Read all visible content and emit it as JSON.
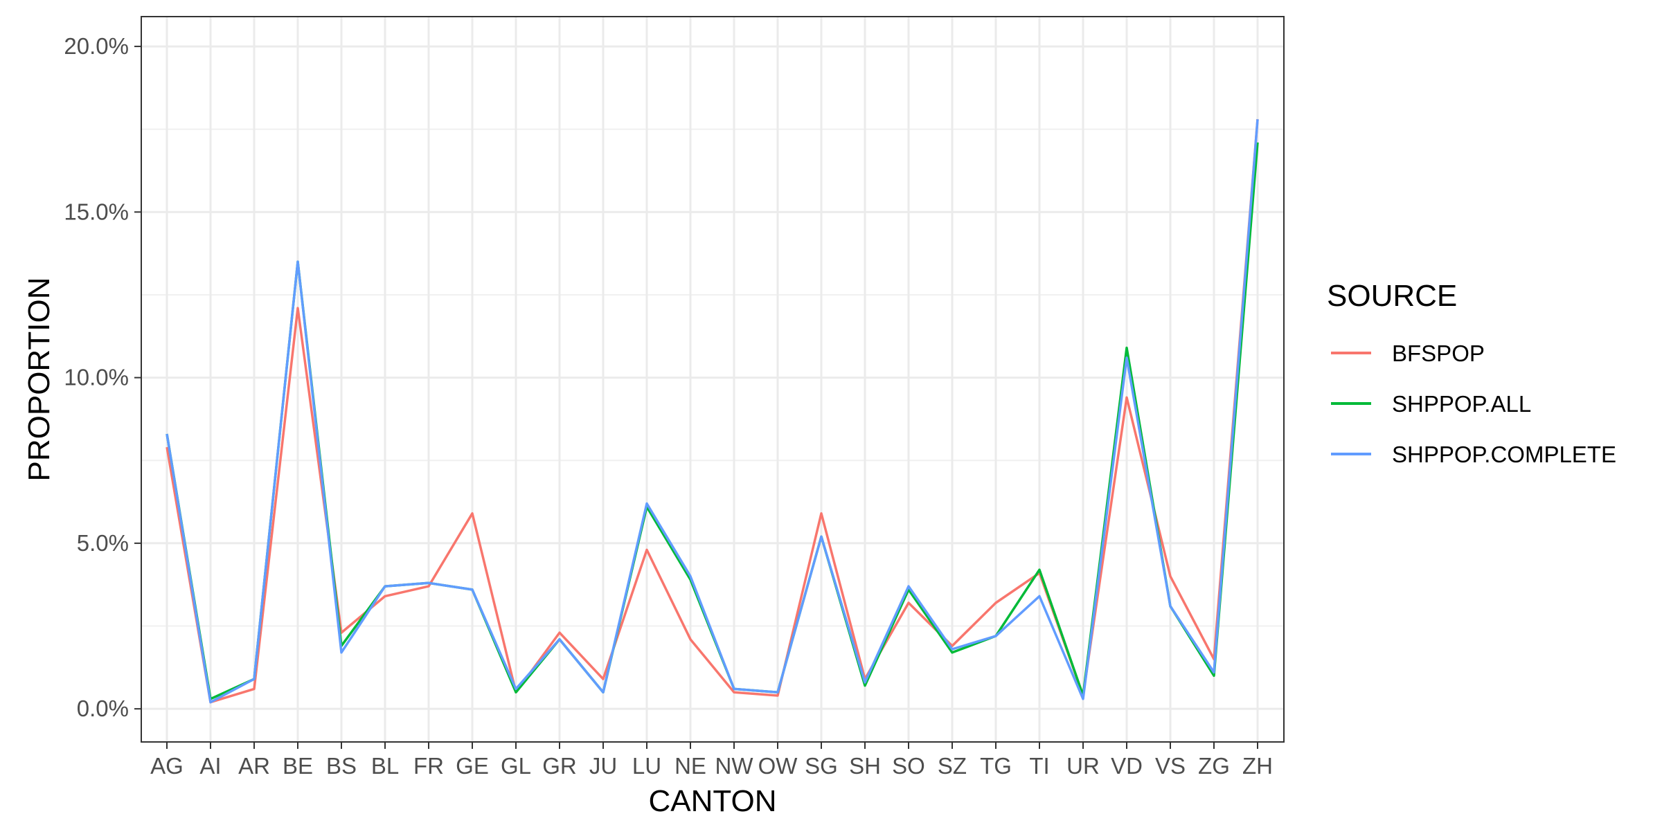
{
  "chart_data": {
    "type": "line",
    "title": "",
    "xlabel": "CANTON",
    "ylabel": "PROPORTION",
    "ylim": [
      -0.01,
      0.209
    ],
    "y_ticks": [
      0.0,
      0.05,
      0.1,
      0.15,
      0.2
    ],
    "y_tick_labels": [
      "0.0%",
      "5.0%",
      "10.0%",
      "15.0%",
      "20.0%"
    ],
    "grid": true,
    "legend": {
      "title": "SOURCE",
      "position": "right"
    },
    "categories": [
      "AG",
      "AI",
      "AR",
      "BE",
      "BS",
      "BL",
      "FR",
      "GE",
      "GL",
      "GR",
      "JU",
      "LU",
      "NE",
      "NW",
      "OW",
      "SG",
      "SH",
      "SO",
      "SZ",
      "TG",
      "TI",
      "UR",
      "VD",
      "VS",
      "ZG",
      "ZH"
    ],
    "series": [
      {
        "name": "BFSPOP",
        "color": "#F8766D",
        "values": [
          0.079,
          0.002,
          0.006,
          0.121,
          0.023,
          0.034,
          0.037,
          0.059,
          0.005,
          0.023,
          0.009,
          0.048,
          0.021,
          0.005,
          0.004,
          0.059,
          0.009,
          0.032,
          0.019,
          0.032,
          0.041,
          0.004,
          0.094,
          0.04,
          0.015,
          0.178
        ]
      },
      {
        "name": "SHPPOP.ALL",
        "color": "#00BA38",
        "values": [
          0.083,
          0.003,
          0.009,
          0.135,
          0.019,
          0.037,
          0.038,
          0.036,
          0.005,
          0.021,
          0.005,
          0.061,
          0.039,
          0.006,
          0.005,
          0.052,
          0.007,
          0.036,
          0.017,
          0.022,
          0.042,
          0.004,
          0.109,
          0.031,
          0.01,
          0.171
        ]
      },
      {
        "name": "SHPPOP.COMPLETE",
        "color": "#619CFF",
        "values": [
          0.083,
          0.002,
          0.009,
          0.135,
          0.017,
          0.037,
          0.038,
          0.036,
          0.006,
          0.021,
          0.005,
          0.062,
          0.04,
          0.006,
          0.005,
          0.052,
          0.008,
          0.037,
          0.018,
          0.022,
          0.034,
          0.003,
          0.106,
          0.031,
          0.011,
          0.178
        ]
      }
    ]
  }
}
